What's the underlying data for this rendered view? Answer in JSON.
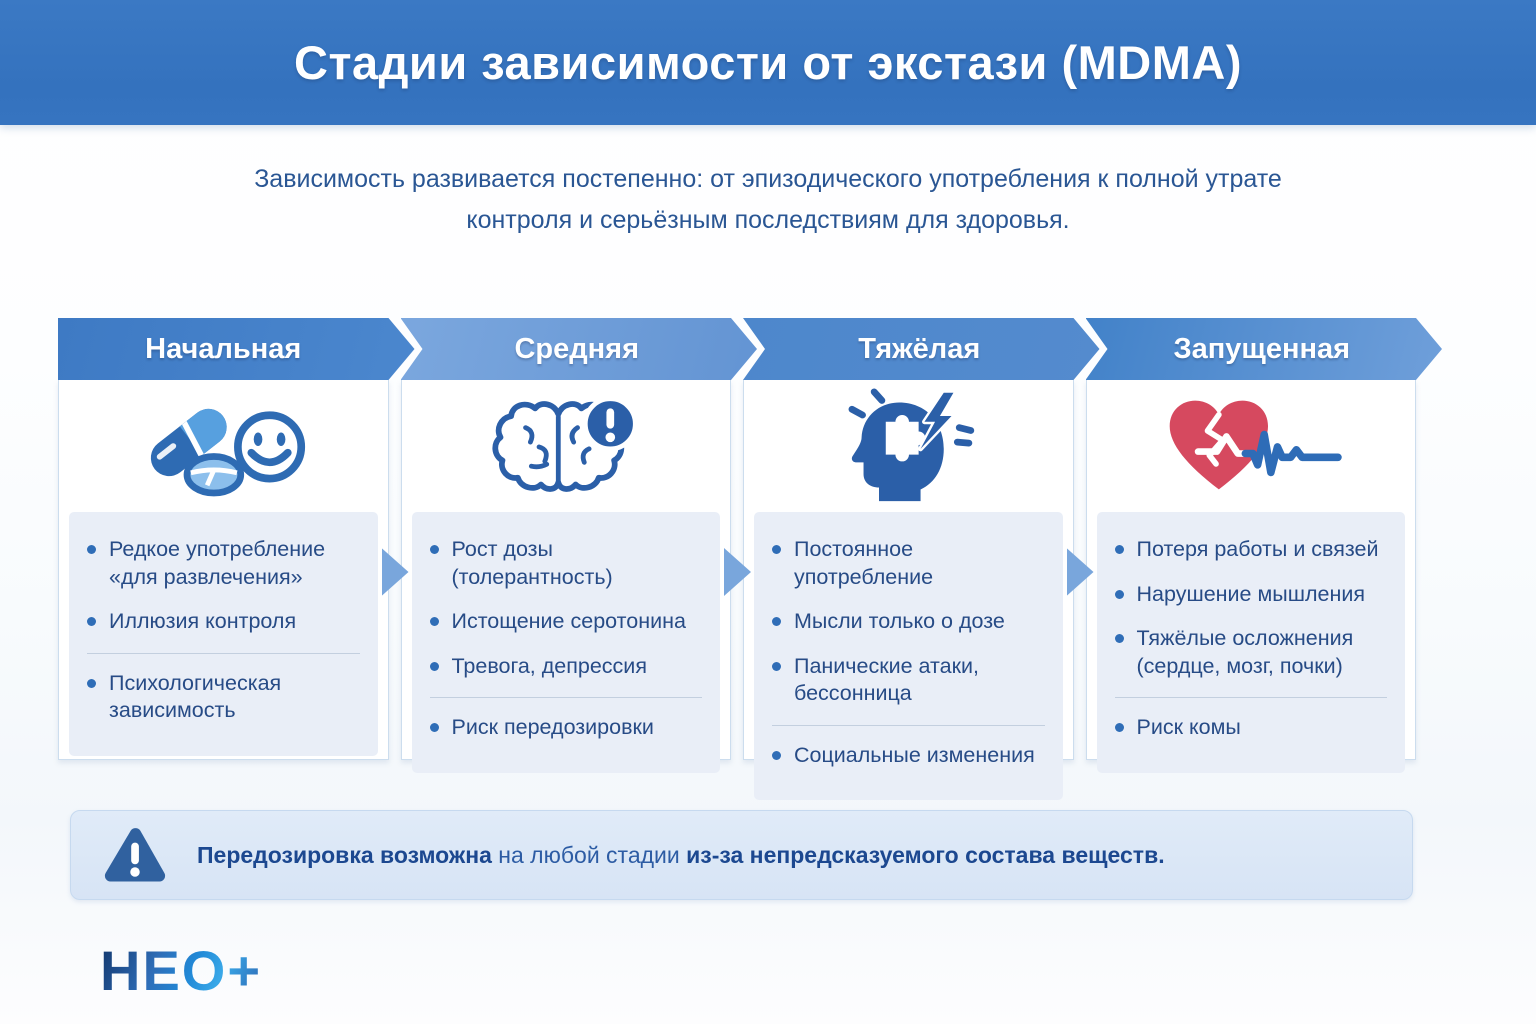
{
  "header": {
    "title": "Стадии зависимости от экстази (MDMA)"
  },
  "intro": {
    "line1": "Зависимость развивается постепенно: от эпизодического употребления к полной утрате",
    "line2": "контроля и серьёзным последствиям для здоровья."
  },
  "stages": [
    {
      "name": "Начальная",
      "icon": "pills-smiley-icon",
      "items": [
        "Редкое употребление «для развлечения»",
        "Иллюзия контроля",
        "Психологическая зависимость"
      ]
    },
    {
      "name": "Средняя",
      "icon": "brain-alert-icon",
      "items": [
        "Рост дозы (толерантность)",
        "Истощение серотонина",
        "Тревога, депрессия",
        "Риск передозировки"
      ]
    },
    {
      "name": "Тяжёлая",
      "icon": "head-lightning-icon",
      "items": [
        "Постоянное употребление",
        "Мысли только о дозе",
        "Панические атаки, бессонница",
        "Социальные изменения"
      ]
    },
    {
      "name": "Запущенная",
      "icon": "broken-heart-ecg-icon",
      "items": [
        "Потеря работы и связей",
        "Нарушение мышления",
        "Тяжёлые осложнения (сердце, мозг, почки)",
        "Риск комы"
      ]
    }
  ],
  "warning": {
    "icon": "warning-triangle-icon",
    "segments": [
      {
        "text": "Передозировка возможна",
        "bold": true
      },
      {
        "text": " на любой стадии ",
        "bold": false
      },
      {
        "text": "из-за непредсказуемого состава веществ.",
        "bold": true
      }
    ]
  },
  "logo": {
    "text": "НЕО+"
  },
  "colors": {
    "banner_blue": "#3473bf",
    "accent_dark_blue": "#2b5fa8",
    "text_navy": "#274b86",
    "list_bg": "#e9eef7",
    "warning_bg": "#dce8f7",
    "warning_triangle_blue": "#30619f",
    "heart_red": "#d6495f",
    "stage_header_blues": [
      "#3e7ac4",
      "#6f9ed9",
      "#4d87cc",
      "#5590d2"
    ],
    "inter_arrow_blue": "#79a6dc"
  }
}
